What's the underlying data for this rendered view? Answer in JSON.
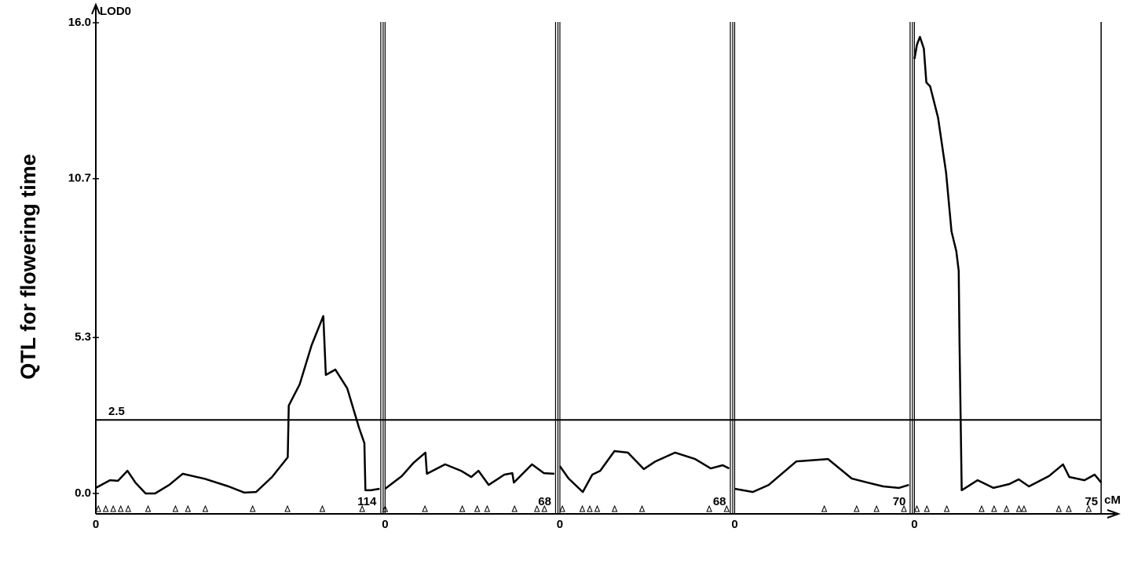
{
  "chart_data": {
    "type": "line",
    "y_title": "QTL for flowering time",
    "y_axis_label": "LOD0",
    "x_unit": "cM",
    "ylim": [
      0,
      16
    ],
    "yticks": [
      {
        "value": 0,
        "label": "0.0"
      },
      5.3,
      10.7,
      {
        "value": 16,
        "label": "16.0"
      }
    ],
    "threshold": 2.5,
    "color": "#000000",
    "groups": [
      {
        "xlim": [
          0,
          114
        ],
        "x": [
          0,
          5.7,
          8.9,
          12.7,
          15.9,
          20,
          23.8,
          29.5,
          34.9,
          43.8,
          53.3,
          59.7,
          64.4,
          70.8,
          77.1,
          77.5,
          81.9,
          86.7,
          91.4,
          92.4,
          96.2,
          101,
          105.7,
          107.9,
          108.3,
          110.5,
          114
        ],
        "values": [
          0.19,
          0.45,
          0.43,
          0.77,
          0.37,
          0,
          0,
          0.29,
          0.67,
          0.5,
          0.24,
          0.03,
          0.05,
          0.56,
          1.23,
          2.99,
          3.71,
          5.04,
          6.03,
          4.03,
          4.21,
          3.57,
          2.24,
          1.71,
          0.11,
          0.11,
          0.16
        ],
        "markers": [
          1,
          4,
          7,
          10,
          13,
          21,
          32,
          37,
          44,
          63,
          77,
          91,
          107
        ]
      },
      {
        "xlim": [
          0,
          68
        ],
        "x": [
          0,
          6.7,
          11.4,
          16.2,
          16.8,
          24.1,
          30.5,
          34.6,
          37.5,
          41.6,
          47.9,
          51.1,
          51.7,
          59,
          63.8,
          68
        ],
        "values": [
          0.16,
          0.59,
          1.04,
          1.39,
          0.67,
          0.99,
          0.77,
          0.56,
          0.77,
          0.29,
          0.64,
          0.69,
          0.37,
          0.99,
          0.69,
          0.67
        ],
        "markers": [
          0,
          16,
          31,
          37,
          41,
          52,
          61,
          64
        ]
      },
      {
        "xlim": [
          0,
          68
        ],
        "x": [
          0,
          3.5,
          9.2,
          13,
          16.2,
          21.9,
          27.3,
          33.7,
          38.4,
          46.3,
          54.3,
          60.6,
          65.4,
          68
        ],
        "values": [
          0.93,
          0.51,
          0.05,
          0.64,
          0.77,
          1.44,
          1.39,
          0.83,
          1.09,
          1.39,
          1.17,
          0.85,
          0.96,
          0.85
        ],
        "markers": [
          1,
          9,
          12,
          15,
          22,
          33,
          60,
          67
        ]
      },
      {
        "xlim": [
          0,
          70
        ],
        "x": [
          0,
          7.3,
          13.7,
          24.8,
          37.5,
          47,
          53.3,
          59.7,
          66,
          70
        ],
        "values": [
          0.16,
          0.05,
          0.29,
          1.09,
          1.17,
          0.51,
          0.37,
          0.24,
          0.19,
          0.29
        ],
        "markers": [
          36,
          49,
          57,
          68
        ]
      },
      {
        "xlim": [
          0,
          75
        ],
        "x": [
          0,
          1,
          2.2,
          3.8,
          4.8,
          6.3,
          9.5,
          12.7,
          14.9,
          16.8,
          17.8,
          18.1,
          19,
          25.4,
          31.7,
          38.1,
          41.9,
          46,
          54,
          59.7,
          62.2,
          68.3,
          72.4,
          75
        ],
        "values": [
          14.77,
          15.25,
          15.52,
          15.12,
          13.97,
          13.84,
          12.77,
          10.91,
          8.91,
          8.24,
          7.57,
          5.17,
          0.11,
          0.45,
          0.19,
          0.32,
          0.48,
          0.24,
          0.59,
          0.99,
          0.56,
          0.45,
          0.64,
          0.37
        ],
        "markers": [
          1,
          5,
          13,
          27,
          32,
          37,
          42,
          44,
          58,
          62,
          70
        ]
      }
    ]
  }
}
